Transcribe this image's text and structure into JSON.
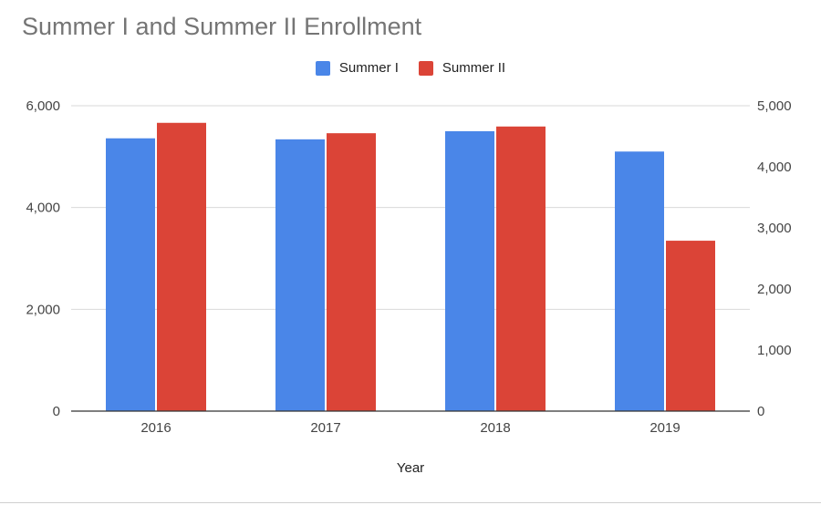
{
  "chart_data": {
    "type": "bar",
    "title": "Summer I and Summer II Enrollment",
    "xlabel": "Year",
    "ylabel": "",
    "categories": [
      "2016",
      "2017",
      "2018",
      "2019"
    ],
    "series": [
      {
        "name": "Summer I",
        "color": "#4a86e8",
        "axis": "left",
        "values": [
          5360,
          5340,
          5500,
          5100
        ]
      },
      {
        "name": "Summer II",
        "color": "#db4437",
        "axis": "right",
        "values": [
          4720,
          4550,
          4660,
          2790
        ]
      }
    ],
    "ylim_left": [
      0,
      6000
    ],
    "yticks_left": [
      "0",
      "2,000",
      "4,000",
      "6,000"
    ],
    "ylim_right": [
      0,
      5000
    ],
    "yticks_right": [
      "0",
      "1,000",
      "2,000",
      "3,000",
      "4,000",
      "5,000"
    ],
    "grid": true,
    "legend_position": "top"
  }
}
